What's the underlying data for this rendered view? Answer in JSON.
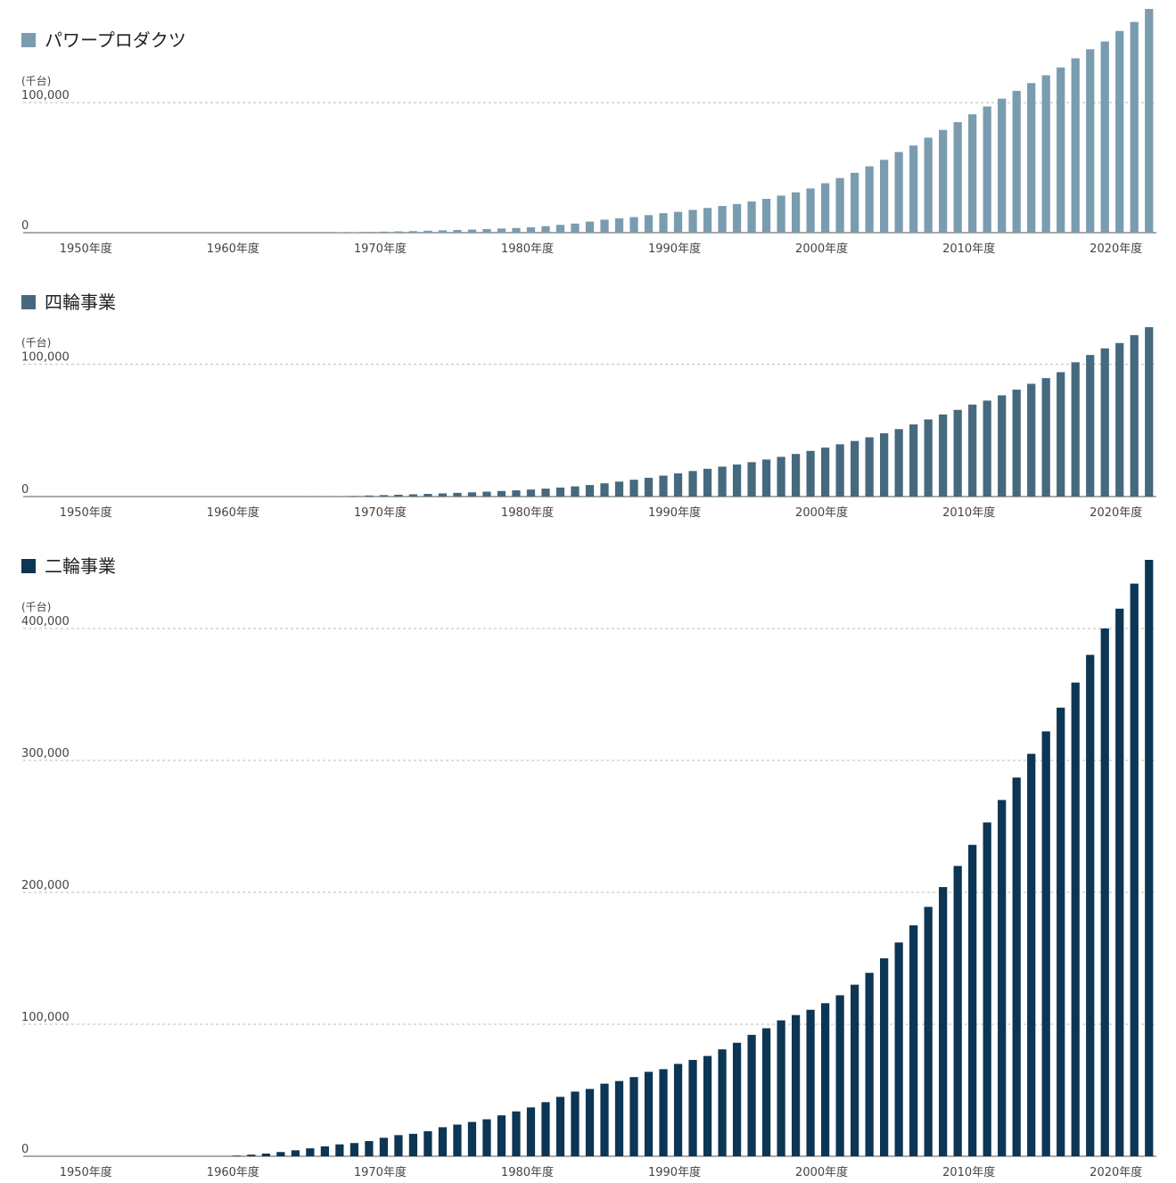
{
  "chart_data": [
    {
      "type": "bar",
      "title": "パワープロダクツ",
      "unit_label": "(千台)",
      "color": "#7a9caf",
      "categories": [
        null,
        null,
        null,
        null,
        "1950年度",
        null,
        null,
        null,
        null,
        null,
        null,
        null,
        null,
        null,
        "1960年度",
        null,
        null,
        null,
        null,
        null,
        null,
        null,
        null,
        null,
        "1970年度",
        null,
        null,
        null,
        null,
        null,
        null,
        null,
        null,
        null,
        "1980年度",
        null,
        null,
        null,
        null,
        null,
        null,
        null,
        null,
        null,
        "1990年度",
        null,
        null,
        null,
        null,
        null,
        null,
        null,
        null,
        null,
        "2000年度",
        null,
        null,
        null,
        null,
        null,
        null,
        null,
        null,
        null,
        "2010年度",
        null,
        null,
        null,
        null,
        null,
        null,
        null,
        null,
        null,
        "2020年度",
        null,
        null
      ],
      "values": [
        0,
        0,
        0,
        0,
        0,
        0,
        0,
        0,
        0,
        0,
        0,
        0,
        0,
        0,
        0,
        0,
        0,
        0,
        0,
        0,
        0,
        200,
        400,
        600,
        800,
        1000,
        1200,
        1500,
        1800,
        2100,
        2400,
        2800,
        3200,
        3600,
        4100,
        5000,
        6000,
        7000,
        8500,
        10000,
        11000,
        12000,
        13500,
        15000,
        16000,
        17500,
        19000,
        20500,
        22000,
        24000,
        26000,
        28500,
        31000,
        34000,
        38000,
        42000,
        46000,
        51000,
        56000,
        62000,
        67000,
        73000,
        79000,
        85000,
        91000,
        97000,
        103000,
        109000,
        115000,
        121000,
        127000,
        134000,
        141000,
        147000,
        155000,
        162000,
        172000
      ],
      "ylim": [
        0,
        172000
      ],
      "yticks": [
        0,
        {
          "value": 100000,
          "label": "100,000"
        }
      ],
      "grid": true
    },
    {
      "type": "bar",
      "title": "四輪事業",
      "unit_label": "(千台)",
      "color": "#46697e",
      "categories": [
        null,
        null,
        null,
        null,
        "1950年度",
        null,
        null,
        null,
        null,
        null,
        null,
        null,
        null,
        null,
        "1960年度",
        null,
        null,
        null,
        null,
        null,
        null,
        null,
        null,
        null,
        "1970年度",
        null,
        null,
        null,
        null,
        null,
        null,
        null,
        null,
        null,
        "1980年度",
        null,
        null,
        null,
        null,
        null,
        null,
        null,
        null,
        null,
        "1990年度",
        null,
        null,
        null,
        null,
        null,
        null,
        null,
        null,
        null,
        "2000年度",
        null,
        null,
        null,
        null,
        null,
        null,
        null,
        null,
        null,
        "2010年度",
        null,
        null,
        null,
        null,
        null,
        null,
        null,
        null,
        null,
        "2020年度",
        null,
        null
      ],
      "values": [
        0,
        0,
        0,
        0,
        0,
        0,
        0,
        0,
        0,
        0,
        0,
        0,
        0,
        0,
        0,
        0,
        0,
        20,
        50,
        100,
        200,
        300,
        500,
        800,
        1100,
        1400,
        1700,
        2000,
        2400,
        2800,
        3200,
        3700,
        4200,
        4700,
        5300,
        6000,
        6800,
        7700,
        8700,
        10000,
        11300,
        12700,
        14200,
        15800,
        17500,
        19300,
        21000,
        22600,
        24200,
        26000,
        28000,
        30000,
        32200,
        34500,
        37000,
        39500,
        42000,
        44800,
        47800,
        51000,
        54500,
        58300,
        62000,
        65500,
        69500,
        72500,
        76500,
        80800,
        85200,
        89500,
        94000,
        101500,
        107000,
        112000,
        116000,
        122000,
        128000
      ],
      "ylim": [
        0,
        128000
      ],
      "yticks": [
        0,
        {
          "value": 100000,
          "label": "100,000"
        }
      ],
      "grid": true
    },
    {
      "type": "bar",
      "title": "二輪事業",
      "unit_label": "(千台)",
      "color": "#0d3554",
      "categories": [
        null,
        null,
        null,
        null,
        "1950年度",
        null,
        null,
        null,
        null,
        null,
        null,
        null,
        null,
        null,
        "1960年度",
        null,
        null,
        null,
        null,
        null,
        null,
        null,
        null,
        null,
        "1970年度",
        null,
        null,
        null,
        null,
        null,
        null,
        null,
        null,
        null,
        "1980年度",
        null,
        null,
        null,
        null,
        null,
        null,
        null,
        null,
        null,
        "1990年度",
        null,
        null,
        null,
        null,
        null,
        null,
        null,
        null,
        null,
        "2000年度",
        null,
        null,
        null,
        null,
        null,
        null,
        null,
        null,
        null,
        "2010年度",
        null,
        null,
        null,
        null,
        null,
        null,
        null,
        null,
        null,
        "2020年度",
        null,
        null
      ],
      "values": [
        0,
        0,
        0,
        0,
        0,
        0,
        0,
        0,
        0,
        0,
        0,
        0,
        0,
        0,
        500,
        1200,
        2000,
        3200,
        4500,
        6000,
        7500,
        9000,
        10000,
        11500,
        14000,
        16000,
        17000,
        19000,
        22000,
        24000,
        26000,
        28000,
        31000,
        34000,
        37000,
        41000,
        45000,
        49000,
        51000,
        55000,
        57000,
        60000,
        64000,
        66000,
        70000,
        73000,
        76000,
        81000,
        86000,
        92000,
        97000,
        103000,
        107000,
        111000,
        116000,
        122000,
        130000,
        139000,
        150000,
        162000,
        175000,
        189000,
        204000,
        220000,
        236000,
        253000,
        270000,
        287000,
        305000,
        322000,
        340000,
        359000,
        380000,
        400000,
        415000,
        434000,
        452000
      ],
      "ylim": [
        0,
        452000
      ],
      "yticks": [
        0,
        {
          "value": 100000,
          "label": "100,000"
        },
        {
          "value": 200000,
          "label": "200,000"
        },
        {
          "value": 300000,
          "label": "300,000"
        },
        {
          "value": 400000,
          "label": "400,000"
        }
      ],
      "grid": true
    }
  ]
}
